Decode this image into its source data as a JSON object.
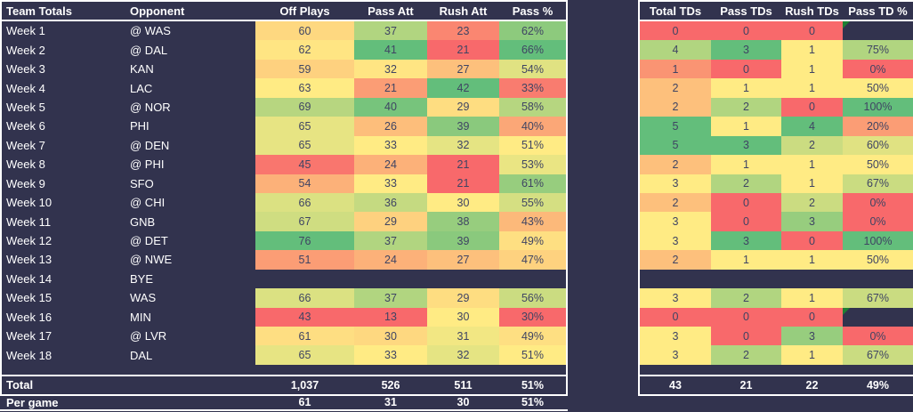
{
  "colors": {
    "background": "#32334E",
    "border": "#FFFFFF",
    "cell_text": "#3F4463",
    "label_text": "#FFFFFF",
    "heatmap_min": "#F8696B",
    "heatmap_mid": "#FFEB84",
    "heatmap_max": "#63BE7B",
    "error_indicator": "#1E8032"
  },
  "left_table": {
    "headers": [
      "Team Totals",
      "Opponent",
      "Off Plays",
      "Pass Att",
      "Rush Att",
      "Pass %"
    ],
    "value_formats": [
      "int",
      "int",
      "int",
      "pct"
    ],
    "rows": [
      {
        "week": "Week 1",
        "opponent": "@ WAS",
        "values": [
          60,
          37,
          23,
          62
        ]
      },
      {
        "week": "Week 2",
        "opponent": "@ DAL",
        "values": [
          62,
          41,
          21,
          66
        ]
      },
      {
        "week": "Week 3",
        "opponent": "KAN",
        "values": [
          59,
          32,
          27,
          54
        ]
      },
      {
        "week": "Week 4",
        "opponent": "LAC",
        "values": [
          63,
          21,
          42,
          33
        ]
      },
      {
        "week": "Week 5",
        "opponent": "@ NOR",
        "values": [
          69,
          40,
          29,
          58
        ]
      },
      {
        "week": "Week 6",
        "opponent": "PHI",
        "values": [
          65,
          26,
          39,
          40
        ]
      },
      {
        "week": "Week 7",
        "opponent": "@ DEN",
        "values": [
          65,
          33,
          32,
          51
        ]
      },
      {
        "week": "Week 8",
        "opponent": "@ PHI",
        "values": [
          45,
          24,
          21,
          53
        ]
      },
      {
        "week": "Week 9",
        "opponent": "SFO",
        "values": [
          54,
          33,
          21,
          61
        ]
      },
      {
        "week": "Week 10",
        "opponent": "@ CHI",
        "values": [
          66,
          36,
          30,
          55
        ]
      },
      {
        "week": "Week 11",
        "opponent": "GNB",
        "values": [
          67,
          29,
          38,
          43
        ]
      },
      {
        "week": "Week 12",
        "opponent": "@ DET",
        "values": [
          76,
          37,
          39,
          49
        ]
      },
      {
        "week": "Week 13",
        "opponent": "@ NWE",
        "values": [
          51,
          24,
          27,
          47
        ]
      },
      {
        "week": "Week 14",
        "opponent": "BYE",
        "values": [
          null,
          null,
          null,
          null
        ]
      },
      {
        "week": "Week 15",
        "opponent": "WAS",
        "values": [
          66,
          37,
          29,
          56
        ]
      },
      {
        "week": "Week 16",
        "opponent": "MIN",
        "values": [
          43,
          13,
          30,
          30
        ]
      },
      {
        "week": "Week 17",
        "opponent": "@ LVR",
        "values": [
          61,
          30,
          31,
          49
        ]
      },
      {
        "week": "Week 18",
        "opponent": "DAL",
        "values": [
          65,
          33,
          32,
          51
        ]
      }
    ],
    "total_row": {
      "label": "Total",
      "values": [
        "1,037",
        "526",
        "511",
        "51%"
      ]
    },
    "per_game_row": {
      "label": "Per game",
      "values": [
        "61",
        "31",
        "30",
        "51%"
      ]
    }
  },
  "right_table": {
    "headers": [
      "Total TDs",
      "Pass TDs",
      "Rush TDs",
      "Pass TD %"
    ],
    "value_formats": [
      "int",
      "int",
      "int",
      "pct"
    ],
    "rows": [
      {
        "values": [
          0,
          0,
          0,
          null
        ],
        "error_indicator": true
      },
      {
        "values": [
          4,
          3,
          1,
          75
        ]
      },
      {
        "values": [
          1,
          0,
          1,
          0
        ]
      },
      {
        "values": [
          2,
          1,
          1,
          50
        ]
      },
      {
        "values": [
          2,
          2,
          0,
          100
        ]
      },
      {
        "values": [
          5,
          1,
          4,
          20
        ]
      },
      {
        "values": [
          5,
          3,
          2,
          60
        ]
      },
      {
        "values": [
          2,
          1,
          1,
          50
        ]
      },
      {
        "values": [
          3,
          2,
          1,
          67
        ]
      },
      {
        "values": [
          2,
          0,
          2,
          0
        ]
      },
      {
        "values": [
          3,
          0,
          3,
          0
        ]
      },
      {
        "values": [
          3,
          3,
          0,
          100
        ]
      },
      {
        "values": [
          2,
          1,
          1,
          50
        ]
      },
      {
        "values": [
          null,
          null,
          null,
          null
        ]
      },
      {
        "values": [
          3,
          2,
          1,
          67
        ]
      },
      {
        "values": [
          0,
          0,
          0,
          null
        ],
        "error_indicator": true
      },
      {
        "values": [
          3,
          0,
          3,
          0
        ]
      },
      {
        "values": [
          3,
          2,
          1,
          67
        ]
      }
    ],
    "total_row": {
      "values": [
        "43",
        "21",
        "22",
        "49%"
      ]
    }
  }
}
